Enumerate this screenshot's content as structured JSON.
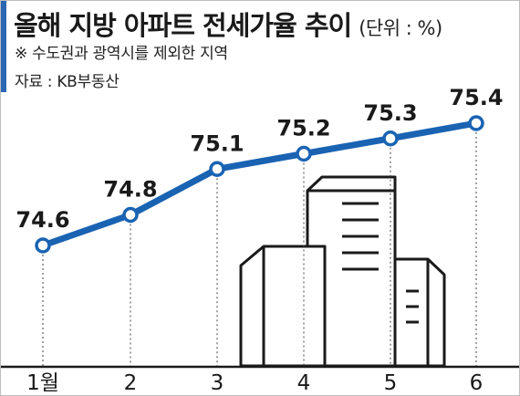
{
  "header": {
    "title": "올해 지방 아파트 전세가율 추이",
    "unit": "(단위 : %)",
    "note": "※ 수도권과 광역시를 제외한 지역",
    "source": "자료 : KB부동산"
  },
  "colors": {
    "line": "#1a63b3",
    "accent_bar": "#2b66b3",
    "text": "#1a1a1a",
    "building_fill": "#ffffff",
    "building_stroke": "#1a1a1a"
  },
  "decoration": {
    "illustration": "building-icon"
  },
  "chart_data": {
    "type": "line",
    "categories": [
      "1월",
      "2",
      "3",
      "4",
      "5",
      "6"
    ],
    "values": [
      74.6,
      74.8,
      75.1,
      75.2,
      75.3,
      75.4
    ],
    "value_labels": [
      "74.6",
      "74.8",
      "75.1",
      "75.2",
      "75.3",
      "75.4"
    ],
    "title": "올해 지방 아파트 전세가율 추이",
    "unit": "%",
    "xlabel": "",
    "ylabel": "",
    "grid": false,
    "legend": "none"
  }
}
